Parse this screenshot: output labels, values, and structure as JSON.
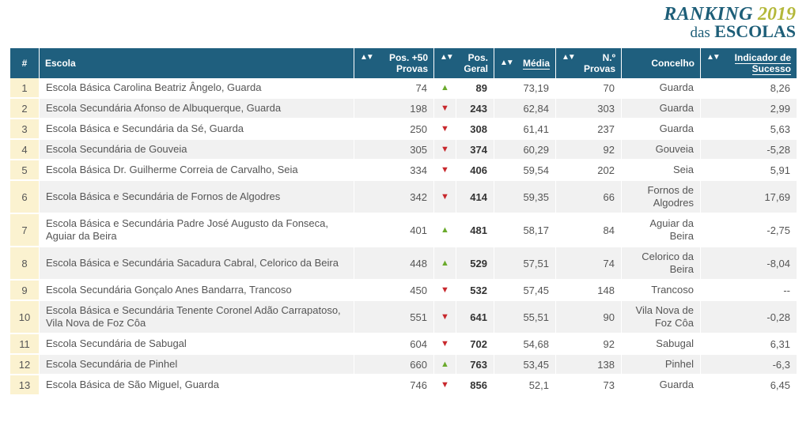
{
  "logo": {
    "ranking": "RANKING",
    "year": "2019",
    "das": "das",
    "escolas": "ESCOLAS"
  },
  "header": {
    "num": "#",
    "escola": "Escola",
    "pos50": "Pos. +50 Provas",
    "posgeral": "Pos. Geral",
    "media": "Média",
    "nprovas": "N.º Provas",
    "concelho": "Concelho",
    "indicador": "Indicador de Sucesso"
  },
  "colors": {
    "header": "#1f5f7e",
    "rank": "#fbf2d0",
    "up": "#6aaa2c",
    "down": "#c8282d"
  },
  "rows": [
    {
      "n": "1",
      "escola": "Escola Básica Carolina Beatriz Ângelo, Guarda",
      "pos50": "74",
      "trend": "up",
      "geral": "89",
      "media": "73,19",
      "provas": "70",
      "concelho": "Guarda",
      "indicador": "8,26"
    },
    {
      "n": "2",
      "escola": "Escola Secundária Afonso de Albuquerque, Guarda",
      "pos50": "198",
      "trend": "down",
      "geral": "243",
      "media": "62,84",
      "provas": "303",
      "concelho": "Guarda",
      "indicador": "2,99"
    },
    {
      "n": "3",
      "escola": "Escola Básica e Secundária da Sé, Guarda",
      "pos50": "250",
      "trend": "down",
      "geral": "308",
      "media": "61,41",
      "provas": "237",
      "concelho": "Guarda",
      "indicador": "5,63"
    },
    {
      "n": "4",
      "escola": "Escola Secundária de Gouveia",
      "pos50": "305",
      "trend": "down",
      "geral": "374",
      "media": "60,29",
      "provas": "92",
      "concelho": "Gouveia",
      "indicador": "-5,28"
    },
    {
      "n": "5",
      "escola": "Escola Básica Dr. Guilherme Correia de Carvalho, Seia",
      "pos50": "334",
      "trend": "down",
      "geral": "406",
      "media": "59,54",
      "provas": "202",
      "concelho": "Seia",
      "indicador": "5,91"
    },
    {
      "n": "6",
      "escola": "Escola Básica e Secundária de Fornos de Algodres",
      "pos50": "342",
      "trend": "down",
      "geral": "414",
      "media": "59,35",
      "provas": "66",
      "concelho": "Fornos de Algodres",
      "indicador": "17,69"
    },
    {
      "n": "7",
      "escola": "Escola Básica e Secundária Padre José Augusto da Fonseca, Aguiar da Beira",
      "pos50": "401",
      "trend": "up",
      "geral": "481",
      "media": "58,17",
      "provas": "84",
      "concelho": "Aguiar da Beira",
      "indicador": "-2,75"
    },
    {
      "n": "8",
      "escola": "Escola Básica e Secundária Sacadura Cabral, Celorico da Beira",
      "pos50": "448",
      "trend": "up",
      "geral": "529",
      "media": "57,51",
      "provas": "74",
      "concelho": "Celorico da Beira",
      "indicador": "-8,04"
    },
    {
      "n": "9",
      "escola": "Escola Secundária Gonçalo Anes Bandarra, Trancoso",
      "pos50": "450",
      "trend": "down",
      "geral": "532",
      "media": "57,45",
      "provas": "148",
      "concelho": "Trancoso",
      "indicador": "--"
    },
    {
      "n": "10",
      "escola": "Escola Básica e Secundária Tenente Coronel Adão Carrapatoso, Vila Nova de Foz Côa",
      "pos50": "551",
      "trend": "down",
      "geral": "641",
      "media": "55,51",
      "provas": "90",
      "concelho": "Vila Nova de Foz Côa",
      "indicador": "-0,28"
    },
    {
      "n": "11",
      "escola": "Escola Secundária de Sabugal",
      "pos50": "604",
      "trend": "down",
      "geral": "702",
      "media": "54,68",
      "provas": "92",
      "concelho": "Sabugal",
      "indicador": "6,31"
    },
    {
      "n": "12",
      "escola": "Escola Secundária de Pinhel",
      "pos50": "660",
      "trend": "up",
      "geral": "763",
      "media": "53,45",
      "provas": "138",
      "concelho": "Pinhel",
      "indicador": "-6,3"
    },
    {
      "n": "13",
      "escola": "Escola Básica de São Miguel, Guarda",
      "pos50": "746",
      "trend": "down",
      "geral": "856",
      "media": "52,1",
      "provas": "73",
      "concelho": "Guarda",
      "indicador": "6,45"
    }
  ]
}
